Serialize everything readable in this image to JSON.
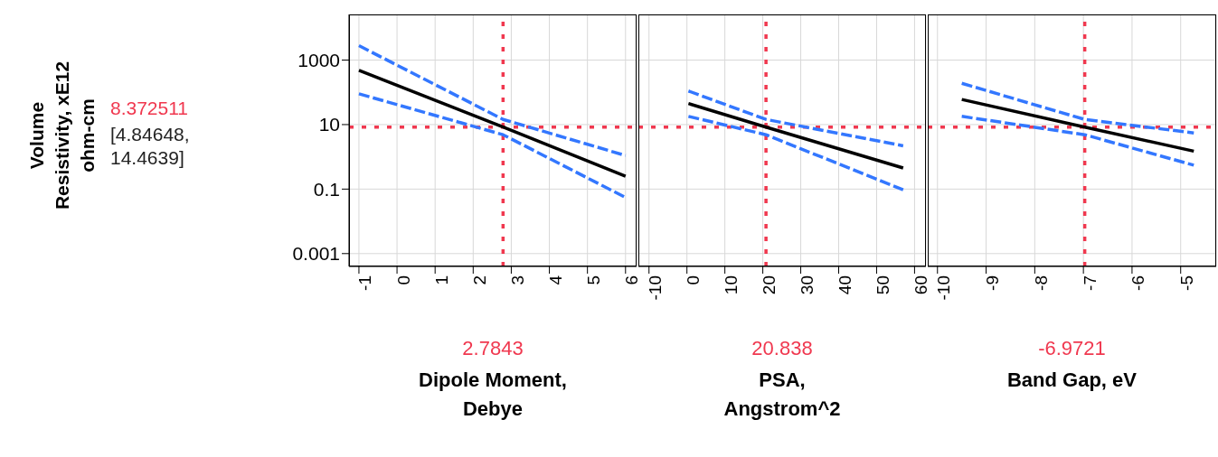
{
  "chart_data": [
    {
      "type": "line",
      "xlabel": "Dipole Moment, Debye",
      "ylabel": "Volume Resistivity, xE12 ohm-cm",
      "xlim": [
        -1.26,
        6.29
      ],
      "xticks": [
        -1,
        0,
        1,
        2,
        3,
        4,
        5,
        6
      ],
      "ylim": [
        0.0004,
        26000
      ],
      "yticks": [
        0.001,
        0.1,
        10,
        1000
      ],
      "log": "y",
      "grid": true,
      "marker": "none",
      "series": [
        {
          "color": "#000000",
          "line_style": "solid",
          "x": [
            -1,
            2.7843,
            6
          ],
          "values": [
            480,
            8.372511,
            0.25
          ]
        },
        {
          "color": "#3377ff",
          "line_style": "dashed",
          "x": [
            -1,
            2.7843,
            6
          ],
          "values": [
            2800,
            14.4639,
            1.1
          ]
        },
        {
          "color": "#3377ff",
          "line_style": "dashed",
          "x": [
            -1,
            2.7843,
            6
          ],
          "values": [
            90,
            4.84648,
            0.055
          ]
        }
      ],
      "ref_lines": [
        {
          "axis": "x",
          "value": 2.7843,
          "label": "2.7843",
          "color": "#f0384f",
          "line_style": "dotted"
        },
        {
          "axis": "y",
          "value": 8.372511,
          "label": "8.372511",
          "color": "#f0384f",
          "line_style": "dotted"
        }
      ],
      "annotations": [
        "[4.84648, 14.4639]"
      ]
    },
    {
      "type": "line",
      "xlabel": "PSA, Angstrom^2",
      "xlim": [
        -12.8,
        63
      ],
      "xticks": [
        -10,
        0,
        10,
        20,
        30,
        40,
        50,
        60
      ],
      "ylim": [
        0.0004,
        26000
      ],
      "yticks": [
        0.001,
        0.1,
        10,
        1000
      ],
      "log": "y",
      "tick_labels": "x",
      "grid": true,
      "marker": "none",
      "series": [
        {
          "color": "#000000",
          "line_style": "solid",
          "x": [
            0.4,
            20.838,
            57
          ],
          "values": [
            45,
            8.372511,
            0.45
          ]
        },
        {
          "color": "#3377ff",
          "line_style": "dashed",
          "x": [
            0.4,
            20.838,
            57
          ],
          "values": [
            110,
            14.4639,
            2.2
          ]
        },
        {
          "color": "#3377ff",
          "line_style": "dashed",
          "x": [
            0.4,
            20.838,
            57
          ],
          "values": [
            18,
            4.84648,
            0.095
          ]
        }
      ],
      "ref_lines": [
        {
          "axis": "x",
          "value": 20.838,
          "label": "20.838",
          "color": "#f0384f",
          "line_style": "dotted"
        },
        {
          "axis": "y",
          "value": 8.372511,
          "color": "#f0384f",
          "line_style": "dotted"
        }
      ]
    },
    {
      "type": "line",
      "xlabel": "Band Gap, eV",
      "xlim": [
        -10.2,
        -4.27
      ],
      "xticks": [
        -10,
        -9,
        -8,
        -7,
        -6,
        -5
      ],
      "ylim": [
        0.0004,
        26000
      ],
      "yticks": [
        0.001,
        0.1,
        10,
        1000
      ],
      "log": "y",
      "tick_labels": "x",
      "grid": true,
      "marker": "none",
      "series": [
        {
          "color": "#000000",
          "line_style": "solid",
          "x": [
            -9.5,
            -6.9721,
            -4.73
          ],
          "values": [
            60,
            8.372511,
            1.5
          ]
        },
        {
          "color": "#3377ff",
          "line_style": "dashed",
          "x": [
            -9.5,
            -6.9721,
            -4.73
          ],
          "values": [
            190,
            14.4639,
            5.5
          ]
        },
        {
          "color": "#3377ff",
          "line_style": "dashed",
          "x": [
            -9.5,
            -6.9721,
            -4.73
          ],
          "values": [
            18,
            4.84648,
            0.55
          ]
        }
      ],
      "ref_lines": [
        {
          "axis": "x",
          "value": -6.9721,
          "label": "-6.9721",
          "color": "#f0384f",
          "line_style": "dotted"
        },
        {
          "axis": "y",
          "value": 8.372511,
          "color": "#f0384f",
          "line_style": "dotted"
        }
      ]
    }
  ]
}
